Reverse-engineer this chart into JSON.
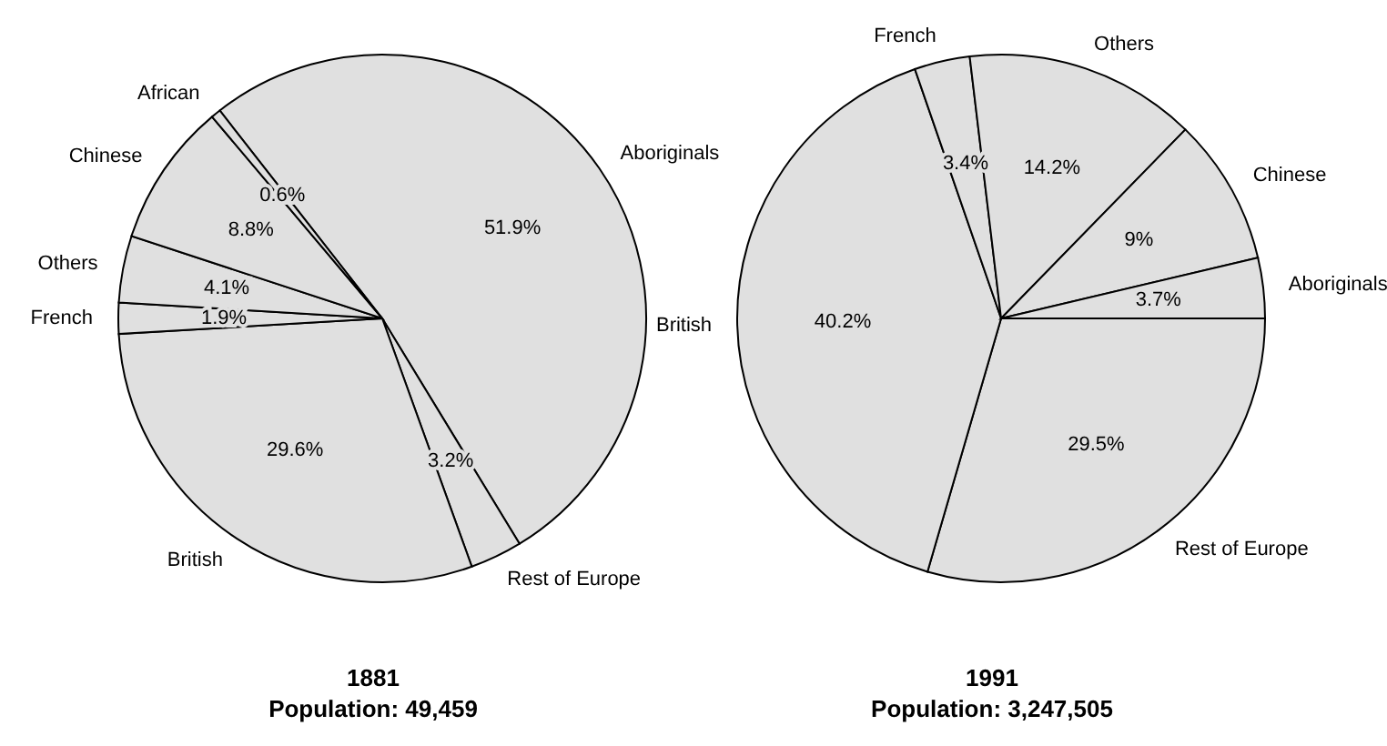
{
  "chart_data": [
    {
      "type": "pie",
      "title": "1881",
      "subtitle": "Population: 49,459",
      "categories": [
        "Aboriginals",
        "Rest of Europe",
        "British",
        "French",
        "Others",
        "Chinese",
        "African"
      ],
      "values": [
        51.9,
        3.2,
        29.6,
        1.9,
        4.1,
        8.8,
        0.6
      ],
      "value_labels": [
        "51.9%",
        "3.2%",
        "29.6%",
        "1.9%",
        "4.1%",
        "8.8%",
        "0.6%"
      ],
      "colors": [
        "#e0e0e0",
        "#e0e0e0",
        "#e0e0e0",
        "#e0e0e0",
        "#e0e0e0",
        "#e0e0e0",
        "#e0e0e0"
      ]
    },
    {
      "type": "pie",
      "title": "1991",
      "subtitle": "Population: 3,247,505",
      "categories": [
        "Rest of Europe",
        "British",
        "French",
        "Others",
        "Chinese",
        "Aboriginals"
      ],
      "values": [
        29.5,
        40.2,
        3.4,
        14.2,
        9,
        3.7
      ],
      "value_labels": [
        "29.5%",
        "40.2%",
        "3.4%",
        "14.2%",
        "9%",
        "3.7%"
      ],
      "colors": [
        "#e0e0e0",
        "#e0e0e0",
        "#e0e0e0",
        "#e0e0e0",
        "#e0e0e0",
        "#e0e0e0"
      ]
    }
  ]
}
